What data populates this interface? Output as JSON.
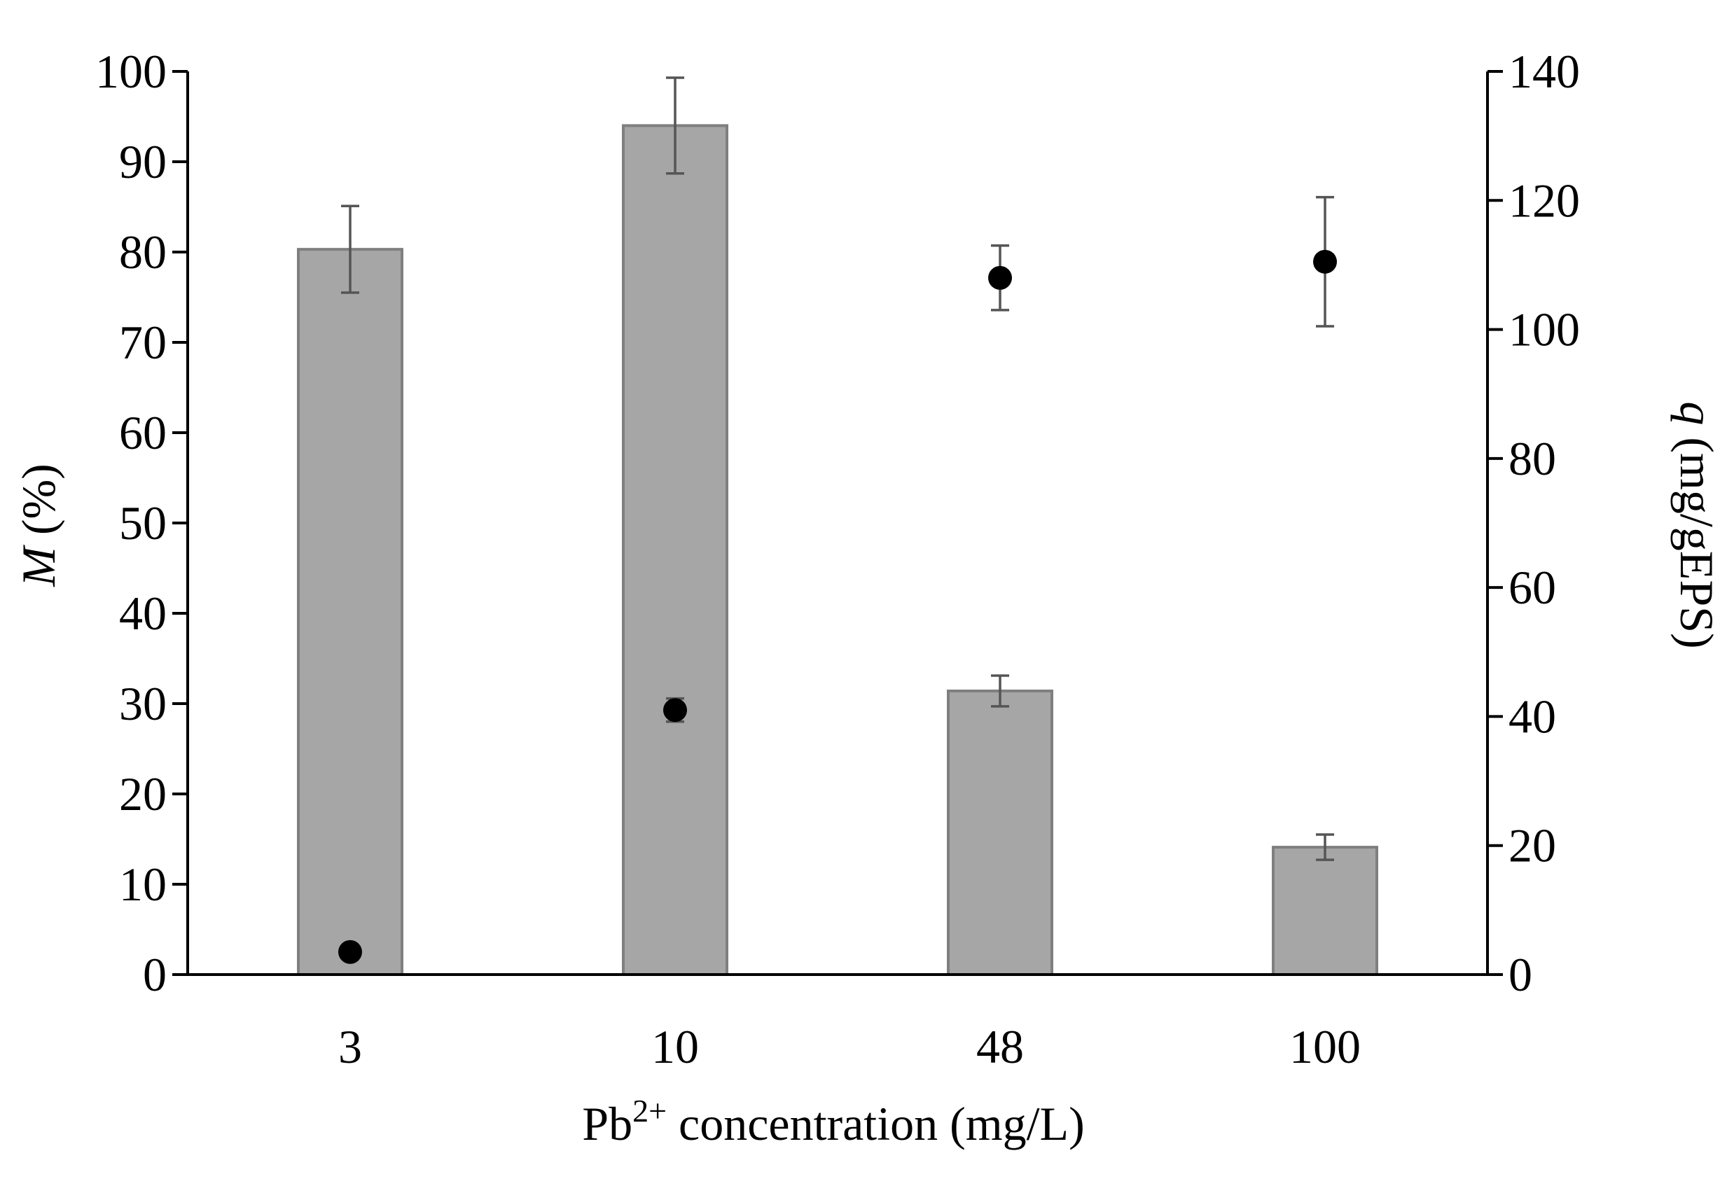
{
  "chart_data": {
    "type": "bar+scatter",
    "categories": [
      "3",
      "10",
      "48",
      "100"
    ],
    "xlabel": {
      "prefix": "Pb",
      "superscript": "2+",
      "suffix": " concentration  (mg/L)"
    },
    "y_left": {
      "label_italic": "M",
      "label_rest": " (%)",
      "ylim": [
        0,
        100
      ],
      "ticks": [
        0,
        10,
        20,
        30,
        40,
        50,
        60,
        70,
        80,
        90,
        100
      ]
    },
    "y_right": {
      "label_italic": "q",
      "label_rest": " (mg/gEPS)",
      "ylim": [
        0,
        140
      ],
      "ticks": [
        0,
        20,
        40,
        60,
        80,
        100,
        120,
        140
      ]
    },
    "series": [
      {
        "name": "M",
        "kind": "bar",
        "axis": "left",
        "values": [
          80.3,
          94.0,
          31.4,
          14.1
        ],
        "errors": [
          4.8,
          5.3,
          1.7,
          1.4
        ],
        "color": "#a6a6a6",
        "edge_color": "#7f7f7f"
      },
      {
        "name": "q",
        "kind": "scatter",
        "axis": "right",
        "values": [
          3.5,
          41.0,
          108.0,
          110.5
        ],
        "errors": [
          0,
          1.8,
          5.0,
          10.0
        ],
        "color": "#000000"
      }
    ],
    "grid": false,
    "legend": "none"
  }
}
